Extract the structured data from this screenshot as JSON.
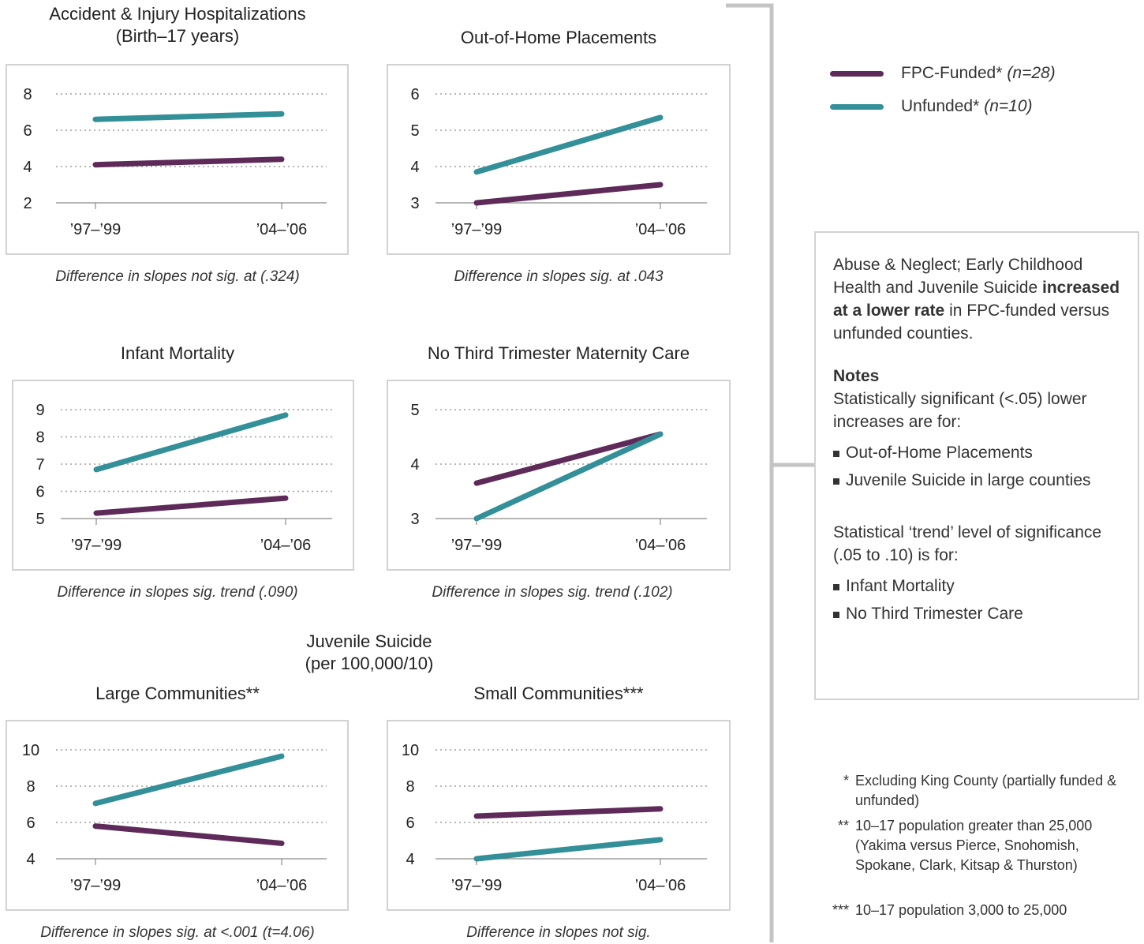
{
  "colors": {
    "funded": "#5e2a59",
    "unfunded": "#338f98",
    "grid": "#9e9e9e",
    "border": "#d2d2d2",
    "bracket": "#c4c4c4"
  },
  "juvenile_title": {
    "line1": "Juvenile Suicide",
    "line2": "(per 100,000/10)"
  },
  "legend": [
    {
      "label": "FPC-Funded*",
      "n": "(n=28)",
      "color": "#5e2a59"
    },
    {
      "label": "Unfunded*",
      "n": "(n=10)",
      "color": "#338f98"
    }
  ],
  "notes": {
    "intro_pre": "Abuse & Neglect; Early Childhood Health and Juvenile Suicide ",
    "intro_bold": "increased at a lower rate",
    "intro_post": " in FPC-funded versus unfunded counties.",
    "heading": "Notes",
    "sig_text": "Statistically significant (<.05) lower increases are for:",
    "sig_items": [
      "Out-of-Home Placements",
      "Juvenile Suicide in large counties"
    ],
    "trend_text": "Statistical ‘trend’ level of significance (.05 to .10) is for:",
    "trend_items": [
      "Infant Mortality",
      "No Third Trimester Care"
    ]
  },
  "footnotes": [
    {
      "marker": "*",
      "text": "Excluding King County (partially funded & unfunded)"
    },
    {
      "marker": "**",
      "text": "10–17 population greater than 25,000 (Yakima versus Pierce, Snohomish, Spokane, Clark, Kitsap & Thurston)"
    },
    {
      "marker": "***",
      "text": "10–17 population 3,000 to 25,000"
    }
  ],
  "chart_data": [
    {
      "type": "line",
      "title": "Accident & Injury Hospitalizations\n(Birth–17 years)",
      "categories": [
        "’97–’99",
        "’04–’06"
      ],
      "yticks": [
        2,
        4,
        6,
        8
      ],
      "ylim": [
        2,
        8
      ],
      "grid": true,
      "series": [
        {
          "name": "FPC-Funded*",
          "values": [
            4.1,
            4.4
          ]
        },
        {
          "name": "Unfunded*",
          "values": [
            6.6,
            6.9
          ]
        }
      ],
      "caption": "Difference in slopes not sig. at (.324)"
    },
    {
      "type": "line",
      "title": "Out-of-Home Placements",
      "categories": [
        "’97–’99",
        "’04–’06"
      ],
      "yticks": [
        3,
        4,
        5,
        6
      ],
      "ylim": [
        3,
        6
      ],
      "grid": true,
      "series": [
        {
          "name": "FPC-Funded*",
          "values": [
            3.0,
            3.5
          ]
        },
        {
          "name": "Unfunded*",
          "values": [
            3.85,
            5.35
          ]
        }
      ],
      "caption": "Difference in slopes sig. at .043"
    },
    {
      "type": "line",
      "title": "Infant Mortality",
      "categories": [
        "’97–’99",
        "’04–’06"
      ],
      "yticks": [
        5,
        6,
        7,
        8,
        9
      ],
      "ylim": [
        5,
        9
      ],
      "grid": true,
      "series": [
        {
          "name": "FPC-Funded*",
          "values": [
            5.2,
            5.75
          ]
        },
        {
          "name": "Unfunded*",
          "values": [
            6.8,
            8.8
          ]
        }
      ],
      "caption": "Difference in slopes sig. trend (.090)"
    },
    {
      "type": "line",
      "title": "No Third Trimester Maternity Care",
      "categories": [
        "’97–’99",
        "’04–’06"
      ],
      "yticks": [
        3,
        4,
        5
      ],
      "ylim": [
        3,
        5
      ],
      "grid": true,
      "series": [
        {
          "name": "FPC-Funded*",
          "values": [
            3.65,
            4.55
          ]
        },
        {
          "name": "Unfunded*",
          "values": [
            3.0,
            4.55
          ]
        }
      ],
      "caption": "Difference in slopes sig. trend (.102)"
    },
    {
      "type": "line",
      "title": "Large Communities**",
      "categories": [
        "’97–’99",
        "’04–’06"
      ],
      "yticks": [
        4,
        6,
        8,
        10
      ],
      "ylim": [
        4,
        10
      ],
      "grid": true,
      "series": [
        {
          "name": "FPC-Funded*",
          "values": [
            5.8,
            4.85
          ]
        },
        {
          "name": "Unfunded*",
          "values": [
            7.05,
            9.65
          ]
        }
      ],
      "caption": "Difference in slopes sig. at <.001 (t=4.06)"
    },
    {
      "type": "line",
      "title": "Small Communities***",
      "categories": [
        "’97–’99",
        "’04–’06"
      ],
      "yticks": [
        4,
        6,
        8,
        10
      ],
      "ylim": [
        4,
        10
      ],
      "grid": true,
      "series": [
        {
          "name": "FPC-Funded*",
          "values": [
            6.35,
            6.75
          ]
        },
        {
          "name": "Unfunded*",
          "values": [
            4.0,
            5.05
          ]
        }
      ],
      "caption": "Difference in slopes not sig."
    }
  ]
}
